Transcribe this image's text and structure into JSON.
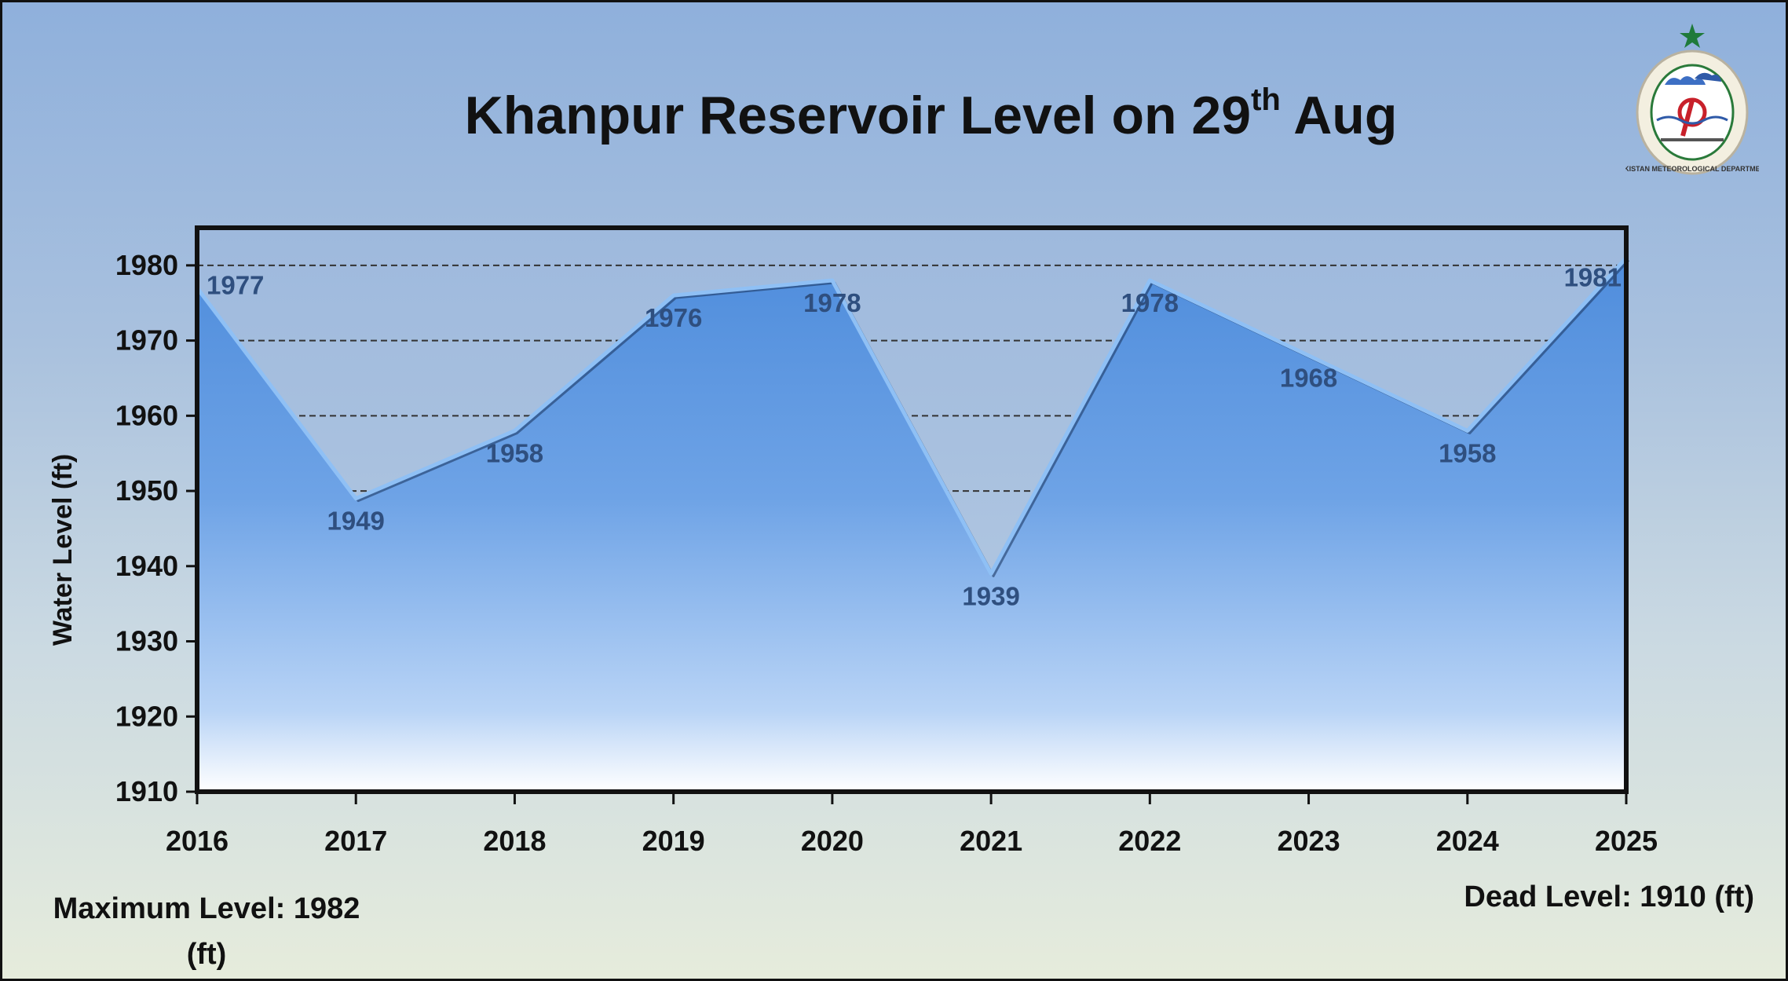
{
  "chart_data": {
    "type": "area",
    "title_main": "Khanpur Reservoir Level on 29",
    "title_sup": "th",
    "title_end": "Aug",
    "ylabel": "Water Level (ft)",
    "xlabel": "",
    "categories": [
      "2016",
      "2017",
      "2018",
      "2019",
      "2020",
      "2021",
      "2022",
      "2023",
      "2024",
      "2025"
    ],
    "series": [
      {
        "values": [
          1977,
          1949,
          1958,
          1976,
          1978,
          1939,
          1978,
          1968,
          1958,
          1981
        ]
      }
    ],
    "ylim": [
      1910,
      1985
    ],
    "yticks": [
      1910,
      1920,
      1930,
      1940,
      1950,
      1960,
      1970,
      1980
    ],
    "grid": "dashed horizontal at 1950–1980",
    "area_color": "#5b95df",
    "label_color": "#2f4f7f"
  },
  "notes": {
    "max_level": "Maximum Level: 1982 (ft)",
    "dead_level": "Dead Level: 1910 (ft)"
  },
  "logo": {
    "text": "PAKISTAN METEOROLOGICAL DEPARTMENT"
  }
}
